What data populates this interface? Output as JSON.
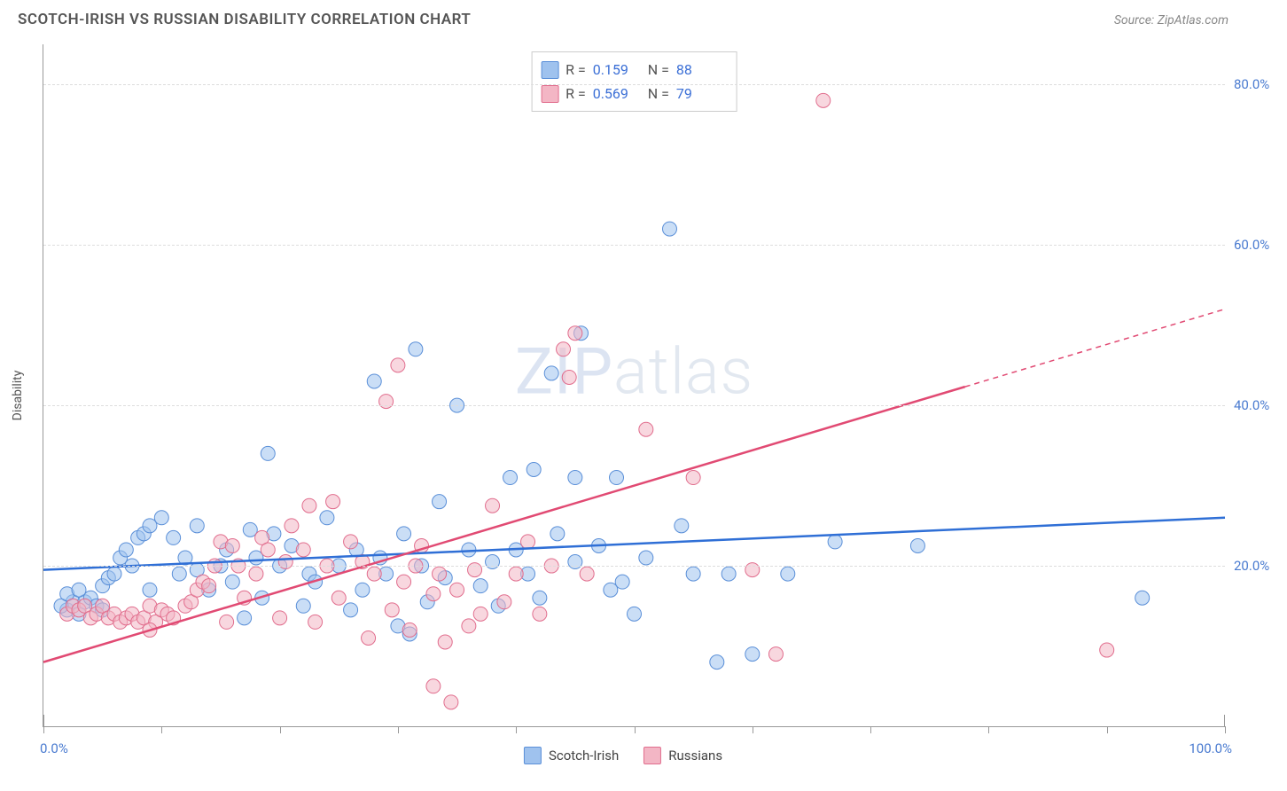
{
  "header": {
    "title": "SCOTCH-IRISH VS RUSSIAN DISABILITY CORRELATION CHART",
    "source": "Source: ZipAtlas.com"
  },
  "watermark": {
    "a": "ZIP",
    "b": "atlas"
  },
  "chart": {
    "type": "scatter",
    "xlim": [
      0,
      100
    ],
    "ylim": [
      0,
      85
    ],
    "xticks": [
      0,
      10,
      20,
      30,
      40,
      50,
      60,
      70,
      80,
      90,
      100
    ],
    "yticks": [
      20,
      40,
      60,
      80
    ],
    "ytick_labels": [
      "20.0%",
      "40.0%",
      "60.0%",
      "80.0%"
    ],
    "x_min_label": "0.0%",
    "x_max_label": "100.0%",
    "yaxis_title": "Disability",
    "grid_color": "#dddddd",
    "axis_color": "#999999",
    "background_color": "#ffffff",
    "marker_radius": 8,
    "marker_opacity": 0.55,
    "series": [
      {
        "name": "Scotch-Irish",
        "R": "0.159",
        "N": "88",
        "fill": "#9fc2ee",
        "stroke": "#5a8fd8",
        "line_color": "#2f6fd6",
        "trend": {
          "x1": 0,
          "y1": 19.5,
          "x2": 100,
          "y2": 26.0,
          "dash_after_x": 100
        },
        "points": [
          [
            2,
            14.5
          ],
          [
            2.5,
            15.5
          ],
          [
            3,
            14.0
          ],
          [
            1.5,
            15.0
          ],
          [
            3.5,
            15.5
          ],
          [
            4,
            16.0
          ],
          [
            2,
            16.5
          ],
          [
            4.5,
            15.0
          ],
          [
            3,
            17.0
          ],
          [
            5,
            14.5
          ],
          [
            5,
            17.5
          ],
          [
            5.5,
            18.5
          ],
          [
            6,
            19.0
          ],
          [
            6.5,
            21.0
          ],
          [
            7,
            22.0
          ],
          [
            7.5,
            20.0
          ],
          [
            8,
            23.5
          ],
          [
            8.5,
            24.0
          ],
          [
            9,
            17.0
          ],
          [
            9,
            25.0
          ],
          [
            10,
            26.0
          ],
          [
            11,
            23.5
          ],
          [
            11.5,
            19.0
          ],
          [
            12,
            21.0
          ],
          [
            13,
            19.5
          ],
          [
            13,
            25.0
          ],
          [
            14,
            17.0
          ],
          [
            15,
            20.0
          ],
          [
            15.5,
            22.0
          ],
          [
            16,
            18.0
          ],
          [
            17,
            13.5
          ],
          [
            17.5,
            24.5
          ],
          [
            18,
            21.0
          ],
          [
            18.5,
            16.0
          ],
          [
            19,
            34.0
          ],
          [
            19.5,
            24.0
          ],
          [
            20,
            20.0
          ],
          [
            21,
            22.5
          ],
          [
            22,
            15.0
          ],
          [
            22.5,
            19.0
          ],
          [
            23,
            18.0
          ],
          [
            24,
            26.0
          ],
          [
            25,
            20.0
          ],
          [
            26,
            14.5
          ],
          [
            26.5,
            22.0
          ],
          [
            27,
            17.0
          ],
          [
            28,
            43.0
          ],
          [
            28.5,
            21.0
          ],
          [
            29,
            19.0
          ],
          [
            30,
            12.5
          ],
          [
            30.5,
            24.0
          ],
          [
            31.5,
            47.0
          ],
          [
            32,
            20.0
          ],
          [
            32.5,
            15.5
          ],
          [
            33.5,
            28.0
          ],
          [
            34,
            18.5
          ],
          [
            35,
            40.0
          ],
          [
            36,
            22.0
          ],
          [
            37,
            17.5
          ],
          [
            38,
            20.5
          ],
          [
            38.5,
            15.0
          ],
          [
            39.5,
            31.0
          ],
          [
            40,
            22.0
          ],
          [
            41,
            19.0
          ],
          [
            41.5,
            32.0
          ],
          [
            42,
            16.0
          ],
          [
            43,
            44.0
          ],
          [
            43.5,
            24.0
          ],
          [
            45,
            20.5
          ],
          [
            45,
            31.0
          ],
          [
            45.5,
            49.0
          ],
          [
            47,
            22.5
          ],
          [
            48,
            17.0
          ],
          [
            48.5,
            31.0
          ],
          [
            49,
            18.0
          ],
          [
            51,
            21.0
          ],
          [
            53,
            62.0
          ],
          [
            54,
            25.0
          ],
          [
            55,
            19.0
          ],
          [
            57,
            8.0
          ],
          [
            58,
            19.0
          ],
          [
            60,
            9.0
          ],
          [
            63,
            19.0
          ],
          [
            67,
            23.0
          ],
          [
            74,
            22.5
          ],
          [
            93,
            16.0
          ],
          [
            50,
            14.0
          ],
          [
            31,
            11.5
          ]
        ]
      },
      {
        "name": "Russians",
        "R": "0.569",
        "N": "79",
        "fill": "#f3b6c5",
        "stroke": "#e16d8d",
        "line_color": "#e14a73",
        "trend": {
          "x1": 0,
          "y1": 8.0,
          "x2": 100,
          "y2": 52.0,
          "dash_after_x": 78
        },
        "points": [
          [
            2,
            14.0
          ],
          [
            2.5,
            15.0
          ],
          [
            3,
            14.5
          ],
          [
            3.5,
            15.0
          ],
          [
            4,
            13.5
          ],
          [
            4.5,
            14.0
          ],
          [
            5,
            15.0
          ],
          [
            5.5,
            13.5
          ],
          [
            6,
            14.0
          ],
          [
            6.5,
            13.0
          ],
          [
            7,
            13.5
          ],
          [
            7.5,
            14.0
          ],
          [
            8,
            13.0
          ],
          [
            8.5,
            13.5
          ],
          [
            9,
            15.0
          ],
          [
            9.5,
            13.0
          ],
          [
            10,
            14.5
          ],
          [
            10.5,
            14.0
          ],
          [
            11,
            13.5
          ],
          [
            12,
            15.0
          ],
          [
            12.5,
            15.5
          ],
          [
            13,
            17.0
          ],
          [
            13.5,
            18.0
          ],
          [
            14,
            17.5
          ],
          [
            14.5,
            20.0
          ],
          [
            15,
            23.0
          ],
          [
            15.5,
            13.0
          ],
          [
            16,
            22.5
          ],
          [
            16.5,
            20.0
          ],
          [
            17,
            16.0
          ],
          [
            18,
            19.0
          ],
          [
            18.5,
            23.5
          ],
          [
            19,
            22.0
          ],
          [
            20,
            13.5
          ],
          [
            20.5,
            20.5
          ],
          [
            21,
            25.0
          ],
          [
            22,
            22.0
          ],
          [
            22.5,
            27.5
          ],
          [
            23,
            13.0
          ],
          [
            24,
            20.0
          ],
          [
            24.5,
            28.0
          ],
          [
            25,
            16.0
          ],
          [
            26,
            23.0
          ],
          [
            27,
            20.5
          ],
          [
            27.5,
            11.0
          ],
          [
            28,
            19.0
          ],
          [
            29,
            40.5
          ],
          [
            29.5,
            14.5
          ],
          [
            30,
            45.0
          ],
          [
            30.5,
            18.0
          ],
          [
            31,
            12.0
          ],
          [
            31.5,
            20.0
          ],
          [
            32,
            22.5
          ],
          [
            33,
            16.5
          ],
          [
            33.5,
            19.0
          ],
          [
            34,
            10.5
          ],
          [
            34.5,
            3.0
          ],
          [
            35,
            17.0
          ],
          [
            36,
            12.5
          ],
          [
            36.5,
            19.5
          ],
          [
            37,
            14.0
          ],
          [
            38,
            27.5
          ],
          [
            39,
            15.5
          ],
          [
            40,
            19.0
          ],
          [
            41,
            23.0
          ],
          [
            42,
            14.0
          ],
          [
            43,
            20.0
          ],
          [
            44,
            47.0
          ],
          [
            44.5,
            43.5
          ],
          [
            45,
            49.0
          ],
          [
            46,
            19.0
          ],
          [
            51,
            37.0
          ],
          [
            55,
            31.0
          ],
          [
            60,
            19.5
          ],
          [
            62,
            9.0
          ],
          [
            66,
            78.0
          ],
          [
            90,
            9.5
          ],
          [
            33,
            5.0
          ],
          [
            9,
            12.0
          ]
        ]
      }
    ],
    "legend_labels": {
      "a": "Scotch-Irish",
      "b": "Russians"
    }
  },
  "style": {
    "swatch_blue_fill": "#9fc2ee",
    "swatch_blue_border": "#5a8fd8",
    "swatch_pink_fill": "#f3b6c5",
    "swatch_pink_border": "#e16d8d",
    "value_color": "#3b6fd6",
    "label_color": "#555555",
    "title_fontsize": 17,
    "source_fontsize": 14
  }
}
